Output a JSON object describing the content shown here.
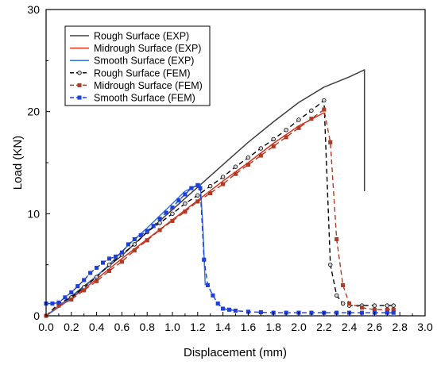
{
  "chart_data": {
    "type": "line",
    "title": "",
    "xlabel": "Displacement (mm)",
    "ylabel": "Load (KN)",
    "xlim": [
      0.0,
      3.0
    ],
    "ylim": [
      0,
      30
    ],
    "xticks": [
      0.0,
      0.2,
      0.4,
      0.6,
      0.8,
      1.0,
      1.2,
      1.4,
      1.6,
      1.8,
      2.0,
      2.2,
      2.4,
      2.6,
      2.8,
      3.0
    ],
    "xtick_labels": [
      "0.0",
      "0.2",
      "0.4",
      "0.6",
      "0.8",
      "1.0",
      "1.2",
      "1.4",
      "1.6",
      "1.8",
      "2.0",
      "2.2",
      "2.4",
      "2.6",
      "2.8",
      "3.0"
    ],
    "yticks": [
      0,
      10,
      20,
      30
    ],
    "ytick_labels": [
      "0",
      "10",
      "20",
      "30"
    ],
    "grid": false,
    "legend_position": "top-left",
    "series": [
      {
        "name": "Rough Surface (EXP)",
        "color": "#404040",
        "style": "solid",
        "marker": "none",
        "x": [
          0.0,
          0.2,
          0.4,
          0.6,
          0.8,
          1.0,
          1.2,
          1.4,
          1.6,
          1.8,
          2.0,
          2.2,
          2.4,
          2.52,
          2.52
        ],
        "y": [
          0.0,
          1.9,
          3.9,
          5.9,
          8.2,
          10.4,
          12.6,
          14.8,
          17.0,
          19.0,
          20.9,
          22.4,
          23.4,
          24.1,
          12.2
        ]
      },
      {
        "name": "Midrough Surface (EXP)",
        "color": "#e0301e",
        "style": "solid",
        "marker": "none",
        "x": [
          0.0,
          0.2,
          0.4,
          0.6,
          0.8,
          1.0,
          1.2,
          1.4,
          1.6,
          1.8,
          2.0,
          2.2
        ],
        "y": [
          0.0,
          1.7,
          3.6,
          5.6,
          7.5,
          9.4,
          11.3,
          13.2,
          15.0,
          16.9,
          18.6,
          19.9
        ]
      },
      {
        "name": "Smooth Surface (EXP)",
        "color": "#3a78d8",
        "style": "solid",
        "marker": "none",
        "x": [
          0.0,
          0.1,
          0.2,
          0.3,
          0.4,
          0.5,
          0.6,
          0.7,
          0.8,
          0.9,
          1.0,
          1.1,
          1.2,
          1.22,
          1.24,
          1.26
        ],
        "y": [
          0.0,
          0.9,
          1.8,
          2.8,
          3.9,
          5.0,
          6.3,
          7.5,
          8.6,
          9.8,
          11.0,
          12.2,
          12.8,
          12.9,
          9.0,
          3.0
        ]
      },
      {
        "name": "Rough Surface (FEM)",
        "color": "#000000",
        "style": "dashed",
        "marker": "circle",
        "x": [
          0.0,
          0.1,
          0.2,
          0.3,
          0.4,
          0.5,
          0.6,
          0.7,
          0.8,
          0.9,
          1.0,
          1.1,
          1.2,
          1.3,
          1.4,
          1.5,
          1.6,
          1.7,
          1.8,
          1.9,
          2.0,
          2.1,
          2.2,
          2.25,
          2.3,
          2.35,
          2.4,
          2.5,
          2.6,
          2.7,
          2.75
        ],
        "y": [
          0.0,
          1.2,
          1.8,
          2.8,
          3.8,
          5.0,
          6.0,
          7.0,
          8.2,
          9.1,
          10.0,
          11.0,
          11.8,
          12.7,
          13.6,
          14.6,
          15.5,
          16.4,
          17.3,
          18.2,
          19.2,
          20.1,
          21.1,
          5.0,
          2.0,
          1.2,
          1.0,
          1.0,
          1.0,
          1.0,
          1.0
        ]
      },
      {
        "name": "Midrough Surface (FEM)",
        "color": "#b03a24",
        "style": "dashed",
        "marker": "square",
        "x": [
          0.0,
          0.1,
          0.2,
          0.3,
          0.4,
          0.5,
          0.6,
          0.7,
          0.8,
          0.9,
          1.0,
          1.1,
          1.2,
          1.3,
          1.4,
          1.5,
          1.6,
          1.7,
          1.8,
          1.9,
          2.0,
          2.1,
          2.2,
          2.25,
          2.3,
          2.35,
          2.4,
          2.5,
          2.6,
          2.7,
          2.75
        ],
        "y": [
          0.0,
          1.0,
          1.6,
          2.5,
          3.4,
          4.4,
          5.3,
          6.4,
          7.4,
          8.4,
          9.3,
          10.2,
          11.2,
          12.0,
          12.9,
          13.9,
          14.8,
          15.7,
          16.6,
          17.5,
          18.4,
          19.3,
          20.2,
          17.0,
          7.5,
          3.0,
          1.2,
          0.8,
          0.6,
          0.6,
          0.6
        ]
      },
      {
        "name": "Smooth Surface (FEM)",
        "color": "#1f3fd8",
        "style": "dashed",
        "marker": "square",
        "x": [
          0.0,
          0.05,
          0.1,
          0.15,
          0.2,
          0.25,
          0.3,
          0.35,
          0.4,
          0.45,
          0.5,
          0.55,
          0.6,
          0.65,
          0.7,
          0.75,
          0.8,
          0.85,
          0.9,
          0.95,
          1.0,
          1.05,
          1.1,
          1.15,
          1.2,
          1.22,
          1.25,
          1.28,
          1.32,
          1.36,
          1.4,
          1.45,
          1.5,
          1.6,
          1.7,
          1.8,
          1.9,
          2.0,
          2.1,
          2.2,
          2.3,
          2.4,
          2.5,
          2.6,
          2.7,
          2.75
        ],
        "y": [
          1.2,
          1.2,
          1.3,
          1.8,
          2.3,
          2.9,
          3.5,
          4.2,
          4.7,
          5.2,
          5.6,
          5.8,
          6.2,
          7.0,
          7.5,
          7.9,
          8.3,
          8.8,
          9.5,
          10.1,
          10.6,
          11.3,
          11.9,
          12.5,
          12.8,
          12.5,
          5.5,
          3.0,
          2.0,
          1.2,
          0.7,
          0.6,
          0.5,
          0.4,
          0.35,
          0.3,
          0.3,
          0.3,
          0.3,
          0.3,
          0.3,
          0.3,
          0.3,
          0.3,
          0.3,
          0.3
        ]
      }
    ]
  }
}
